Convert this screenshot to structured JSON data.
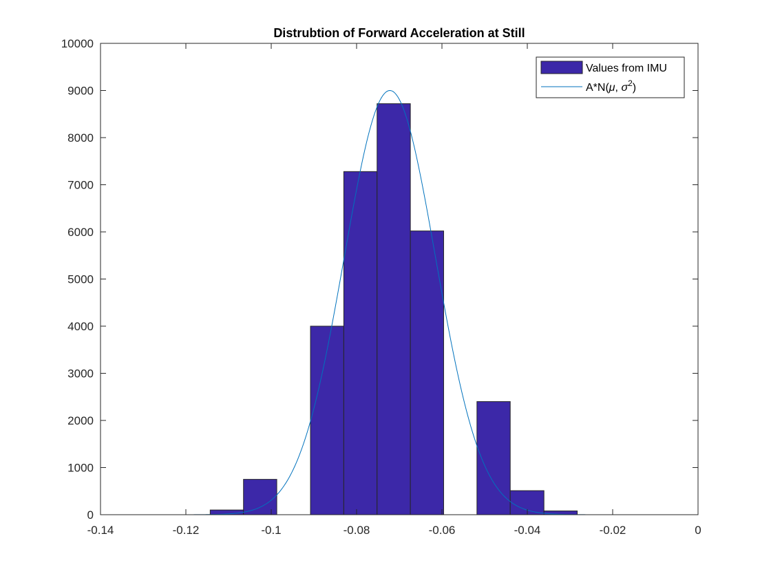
{
  "chart_data": {
    "type": "bar",
    "title": "Distrubtion of Forward Acceleration at Still",
    "xlabel": "",
    "ylabel": "",
    "xlim": [
      -0.14,
      0
    ],
    "ylim": [
      0,
      10000
    ],
    "xticks": [
      -0.14,
      -0.12,
      -0.1,
      -0.08,
      -0.06,
      -0.04,
      -0.02,
      0
    ],
    "xtick_labels": [
      "-0.14",
      "-0.12",
      "-0.1",
      "-0.08",
      "-0.06",
      "-0.04",
      "-0.02",
      "0"
    ],
    "yticks": [
      0,
      1000,
      2000,
      3000,
      4000,
      5000,
      6000,
      7000,
      8000,
      9000,
      10000
    ],
    "ytick_labels": [
      "0",
      "1000",
      "2000",
      "3000",
      "4000",
      "5000",
      "6000",
      "7000",
      "8000",
      "9000",
      "10000"
    ],
    "grid": false,
    "legend_position": "top-right",
    "series": [
      {
        "name": "Values from IMU",
        "kind": "histogram",
        "color": "#3c28a8",
        "bins": [
          {
            "x_start": -0.1143,
            "x_end": -0.1065,
            "value": 100
          },
          {
            "x_start": -0.1065,
            "x_end": -0.0987,
            "value": 750
          },
          {
            "x_start": -0.0987,
            "x_end": -0.0908,
            "value": 0
          },
          {
            "x_start": -0.0908,
            "x_end": -0.083,
            "value": 4000
          },
          {
            "x_start": -0.083,
            "x_end": -0.0752,
            "value": 7280
          },
          {
            "x_start": -0.0752,
            "x_end": -0.0674,
            "value": 8720
          },
          {
            "x_start": -0.0674,
            "x_end": -0.0596,
            "value": 6020
          },
          {
            "x_start": -0.0596,
            "x_end": -0.0518,
            "value": 0
          },
          {
            "x_start": -0.0518,
            "x_end": -0.044,
            "value": 2400
          },
          {
            "x_start": -0.044,
            "x_end": -0.0361,
            "value": 510
          },
          {
            "x_start": -0.0361,
            "x_end": -0.0283,
            "value": 80
          }
        ]
      },
      {
        "name": "A*N(μ, σ²)",
        "kind": "gaussian-fit",
        "color": "#0072bd",
        "peak": 9000,
        "mean": -0.0722,
        "sigma": 0.0107
      }
    ]
  },
  "legend": {
    "items": [
      {
        "label": "Values from IMU"
      },
      {
        "label_prefix": "A*N(",
        "mu": "μ",
        "sep": ", ",
        "sigma": "σ",
        "exp": "2",
        "suffix": ")"
      }
    ]
  }
}
